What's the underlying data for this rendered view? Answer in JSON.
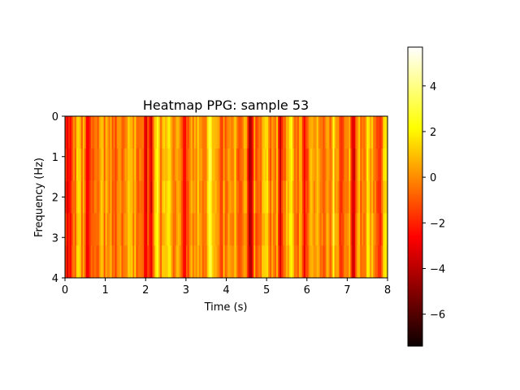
{
  "chart_data": {
    "type": "heatmap",
    "title": "Heatmap PPG: sample 53",
    "xlabel": "Time (s)",
    "ylabel": "Frequency (Hz)",
    "xlim": [
      0,
      8
    ],
    "ylim": [
      4,
      0
    ],
    "x_ticks": [
      0,
      1,
      2,
      3,
      4,
      5,
      6,
      7,
      8
    ],
    "x_tick_labels": [
      "0",
      "1",
      "2",
      "3",
      "4",
      "5",
      "6",
      "7",
      "8"
    ],
    "y_ticks": [
      0,
      1,
      2,
      3,
      4
    ],
    "y_tick_labels": [
      "0",
      "1",
      "2",
      "3",
      "4"
    ],
    "colormap": "hot",
    "colorbar": {
      "vmin": -7.4,
      "vmax": 5.7,
      "ticks": [
        4,
        2,
        0,
        -2,
        -4,
        -6
      ],
      "tick_labels": [
        "4",
        "2",
        "0",
        "−2",
        "−4",
        "−6"
      ]
    },
    "time_columns": [
      {
        "t": 0.05,
        "v": -3.5
      },
      {
        "t": 0.15,
        "v": -2.5
      },
      {
        "t": 0.35,
        "v": 1.5
      },
      {
        "t": 0.55,
        "v": -3.0
      },
      {
        "t": 0.9,
        "v": 1.0
      },
      {
        "t": 1.25,
        "v": -1.5
      },
      {
        "t": 1.6,
        "v": 1.2
      },
      {
        "t": 2.0,
        "v": -3.2
      },
      {
        "t": 2.15,
        "v": -3.8
      },
      {
        "t": 2.3,
        "v": 2.5
      },
      {
        "t": 2.6,
        "v": 1.5
      },
      {
        "t": 2.95,
        "v": -2.5
      },
      {
        "t": 3.3,
        "v": 1.2
      },
      {
        "t": 3.6,
        "v": 2.8
      },
      {
        "t": 3.85,
        "v": -1.5
      },
      {
        "t": 4.35,
        "v": -1.2
      },
      {
        "t": 4.6,
        "v": -4.5
      },
      {
        "t": 5.0,
        "v": 1.5
      },
      {
        "t": 5.35,
        "v": -4.0
      },
      {
        "t": 5.6,
        "v": 2.0
      },
      {
        "t": 5.95,
        "v": -3.2
      },
      {
        "t": 6.25,
        "v": 1.2
      },
      {
        "t": 6.65,
        "v": 2.5
      },
      {
        "t": 6.85,
        "v": -1.5
      },
      {
        "t": 7.15,
        "v": -3.8
      },
      {
        "t": 7.5,
        "v": 1.8
      },
      {
        "t": 7.8,
        "v": -1.5
      },
      {
        "t": 7.95,
        "v": 2.0
      }
    ],
    "baseline_value": 0
  }
}
